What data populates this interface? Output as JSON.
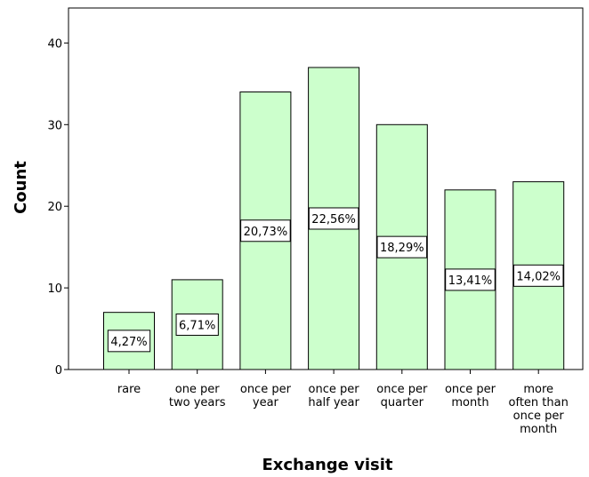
{
  "chart_data": {
    "type": "bar",
    "xlabel": "Exchange visit",
    "ylabel": "Count",
    "ylim": [
      0,
      45
    ],
    "yticks": [
      0,
      10,
      20,
      30,
      40
    ],
    "grid": false,
    "categories": [
      [
        "rare"
      ],
      [
        "one per",
        "two years"
      ],
      [
        "once per",
        "year"
      ],
      [
        "once per",
        "half year"
      ],
      [
        "once per",
        "quarter"
      ],
      [
        "once per",
        "month"
      ],
      [
        "more",
        "often than",
        "once per",
        "month"
      ]
    ],
    "values": [
      7,
      11,
      34,
      37,
      30,
      22,
      23
    ],
    "data_labels": [
      "4,27%",
      "6,71%",
      "20,73%",
      "22,56%",
      "18,29%",
      "13,41%",
      "14,02%"
    ],
    "bar_color": "#ccffcc",
    "bar_edge_color": "#000000"
  }
}
